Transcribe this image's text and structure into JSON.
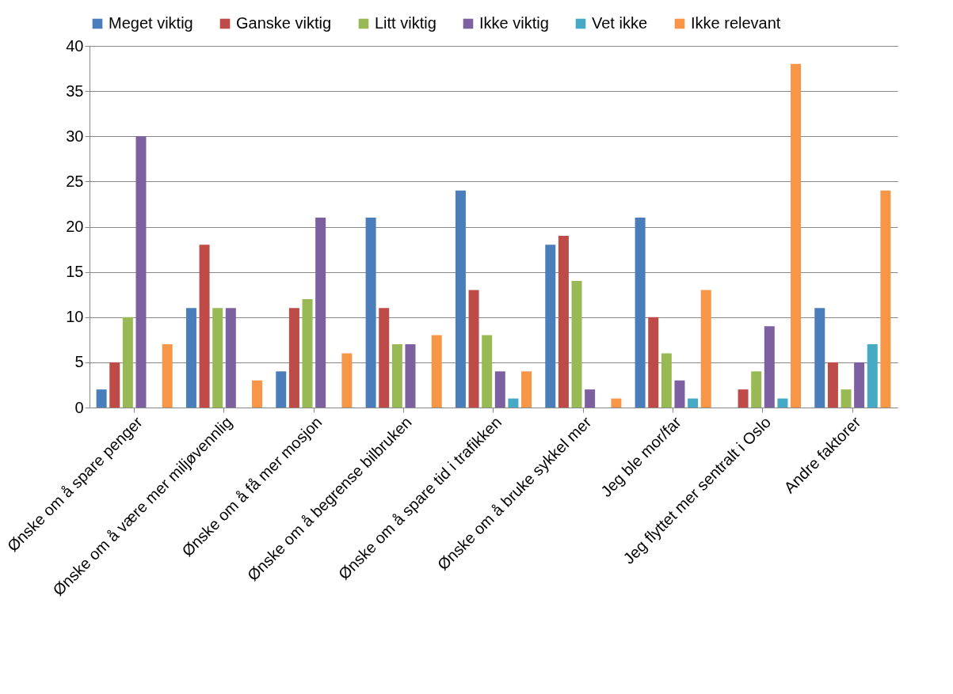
{
  "chart_data": {
    "type": "bar",
    "categories": [
      "Ønske om å spare penger",
      "Ønske om å være mer miljøvennlig",
      "Ønske om å få mer mosjon",
      "Ønske om å begrense bilbruken",
      "Ønske om å spare tid i trafikken",
      "Ønske om å bruke sykkel mer",
      "Jeg ble mor/far",
      "Jeg flyttet mer sentralt i Oslo",
      "Andre faktorer"
    ],
    "series": [
      {
        "name": "Meget viktig",
        "color": "#4a7ebb",
        "values": [
          2,
          11,
          4,
          21,
          24,
          18,
          21,
          0,
          11
        ]
      },
      {
        "name": "Ganske viktig",
        "color": "#be4b48",
        "values": [
          5,
          18,
          11,
          11,
          13,
          19,
          10,
          2,
          5
        ]
      },
      {
        "name": "Litt viktig",
        "color": "#98b954",
        "values": [
          10,
          11,
          12,
          7,
          8,
          14,
          6,
          4,
          2
        ]
      },
      {
        "name": "Ikke viktig",
        "color": "#7d60a0",
        "values": [
          30,
          11,
          21,
          7,
          4,
          2,
          3,
          9,
          5
        ]
      },
      {
        "name": "Vet ikke",
        "color": "#46aac5",
        "values": [
          0,
          0,
          0,
          0,
          1,
          0,
          1,
          1,
          7
        ]
      },
      {
        "name": "Ikke relevant",
        "color": "#f79646",
        "values": [
          7,
          3,
          6,
          8,
          4,
          1,
          13,
          38,
          24
        ]
      }
    ],
    "ylim": [
      0,
      40
    ],
    "yticks": [
      0,
      5,
      10,
      15,
      20,
      25,
      30,
      35,
      40
    ],
    "grid": "y",
    "legend": "top"
  }
}
